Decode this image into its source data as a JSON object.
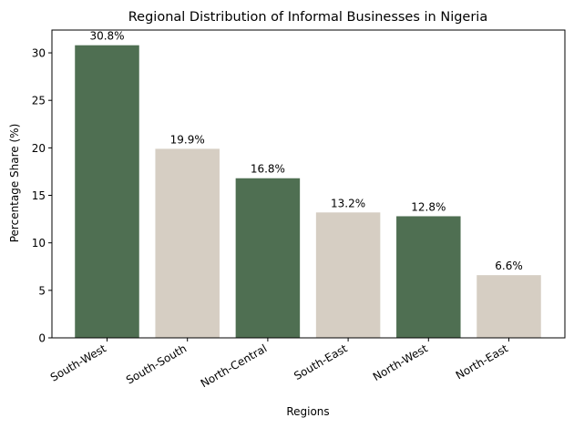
{
  "chart_data": {
    "type": "bar",
    "title": "Regional Distribution of Informal Businesses in Nigeria",
    "xlabel": "Regions",
    "ylabel": "Percentage Share (%)",
    "categories": [
      "South-West",
      "South-South",
      "North-Central",
      "South-East",
      "North-West",
      "North-East"
    ],
    "values": [
      30.8,
      19.9,
      16.8,
      13.2,
      12.8,
      6.6
    ],
    "data_labels": [
      "30.8%",
      "19.9%",
      "16.8%",
      "13.2%",
      "12.8%",
      "6.6%"
    ],
    "bar_colors": [
      "#4f6f52",
      "#d6cec3",
      "#4f6f52",
      "#d6cec3",
      "#4f6f52",
      "#d6cec3"
    ],
    "ylim": [
      0,
      32.4
    ],
    "yticks": [
      0,
      5,
      10,
      15,
      20,
      25,
      30
    ],
    "grid": false,
    "legend": "none"
  }
}
